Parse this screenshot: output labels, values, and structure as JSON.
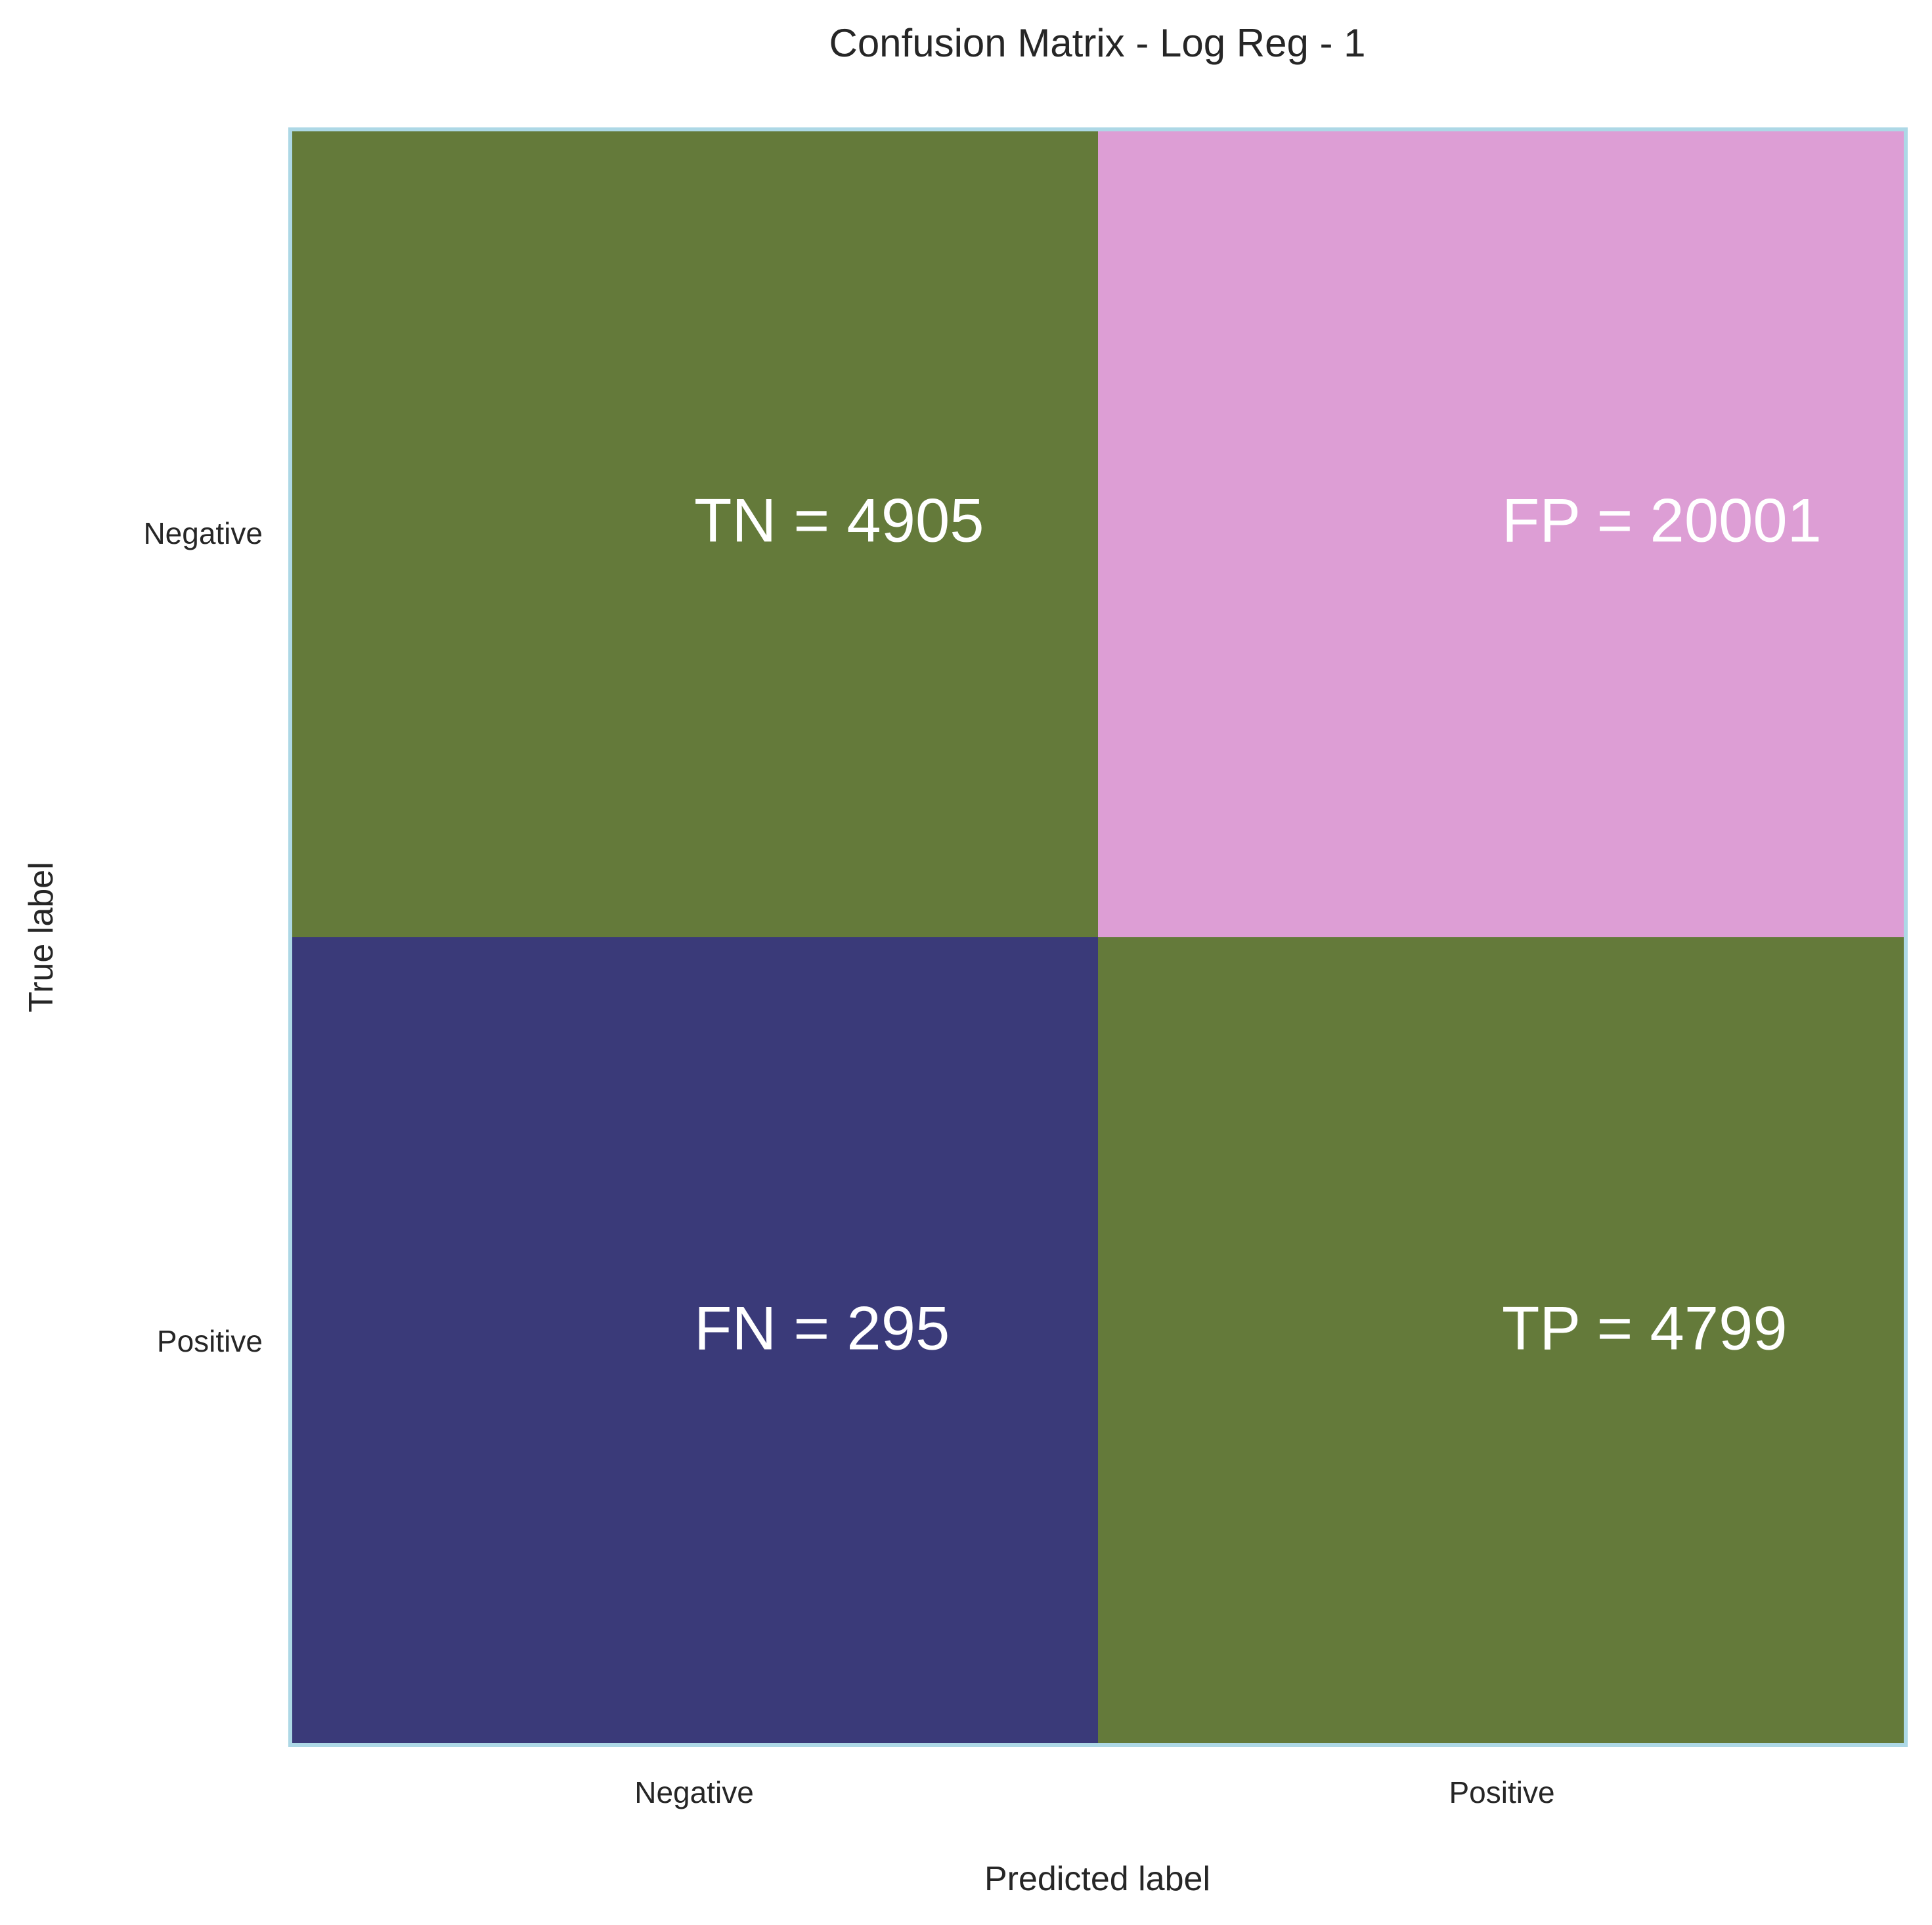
{
  "chart_data": {
    "type": "heatmap",
    "title": "Confusion Matrix - Log Reg - 1",
    "xlabel": "Predicted label",
    "ylabel": "True label",
    "x_categories": [
      "Negative",
      "Positive"
    ],
    "y_categories": [
      "Negative",
      "Positive"
    ],
    "cells": [
      {
        "row": 0,
        "col": 0,
        "code": "TN",
        "value": 4905,
        "label": "TN = 4905",
        "color": "#647a3a"
      },
      {
        "row": 0,
        "col": 1,
        "code": "FP",
        "value": 20001,
        "label": "FP = 20001",
        "color": "#dd9ed5"
      },
      {
        "row": 1,
        "col": 0,
        "code": "FN",
        "value": 295,
        "label": "FN = 295",
        "color": "#3a3a79"
      },
      {
        "row": 1,
        "col": 1,
        "code": "TP",
        "value": 4799,
        "label": "TP = 4799",
        "color": "#647a3a"
      }
    ],
    "frame_color": "#add8e6",
    "grid": false,
    "legend": false
  }
}
